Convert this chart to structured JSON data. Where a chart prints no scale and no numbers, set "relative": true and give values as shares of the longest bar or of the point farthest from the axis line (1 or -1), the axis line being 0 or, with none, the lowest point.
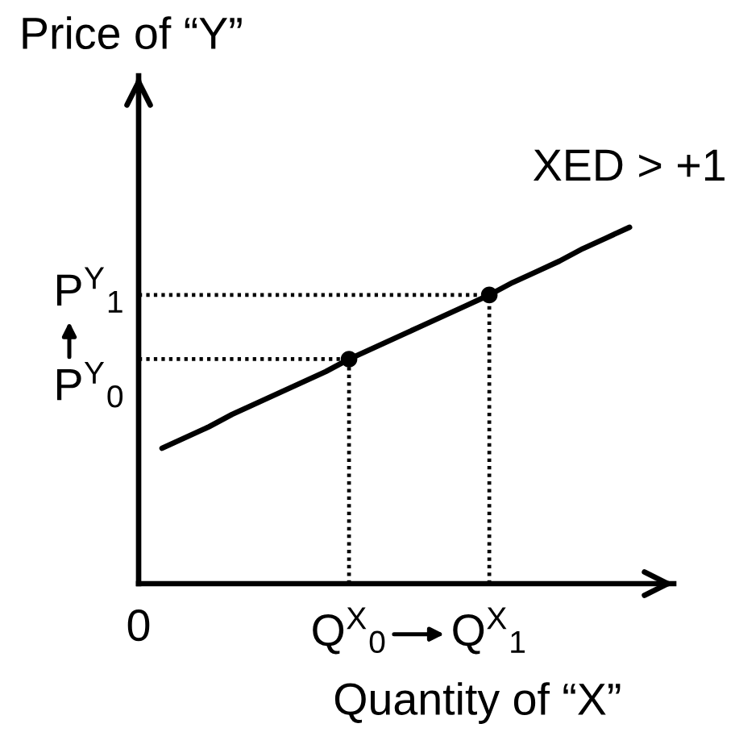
{
  "chart_data": {
    "type": "line",
    "relative": true,
    "xlabel": "Quantity of “X”",
    "ylabel": "Price of “Y”",
    "categories": [
      "0",
      null,
      null,
      null,
      null,
      null,
      null,
      null,
      null,
      "Q$^{X}$$_{0}$",
      null,
      null,
      null,
      null,
      null,
      "Q$^{X}$$_{1}$",
      null,
      null,
      null,
      null,
      null,
      null
    ],
    "series": [
      {
        "name": "XED > +1",
        "color": "#000000",
        "line_style": "solid",
        "values": [
          null,
          0.38,
          0.41,
          0.44,
          0.475,
          0.505,
          0.535,
          0.565,
          0.595,
          0.63,
          0.66,
          0.69,
          0.72,
          0.75,
          0.78,
          0.81,
          0.845,
          0.875,
          0.905,
          0.94,
          0.97,
          1
        ]
      },
      {
        "type": "lollipop",
        "color": "#000000",
        "marker": "circle",
        "line_style": "dotted",
        "values": [
          null,
          null,
          null,
          null,
          null,
          null,
          null,
          null,
          null,
          0.63,
          null,
          null,
          null,
          null,
          null,
          0.81,
          null,
          null,
          null,
          null,
          null,
          null
        ]
      },
      {
        "type": "line",
        "color": "#000000",
        "line_style": "dotted",
        "values": [
          0.63,
          0.63,
          0.63,
          0.63,
          0.63,
          0.63,
          0.63,
          0.63,
          0.63,
          0.63,
          null,
          null,
          null,
          null,
          null,
          null,
          null,
          null,
          null,
          null,
          null,
          null
        ]
      },
      {
        "type": "line",
        "color": "#000000",
        "line_style": "dotted",
        "values": [
          0.81,
          0.81,
          0.81,
          0.81,
          0.81,
          0.81,
          0.81,
          0.81,
          0.81,
          0.81,
          0.81,
          0.81,
          0.81,
          0.81,
          0.81,
          0.81,
          null,
          null,
          null,
          null,
          null,
          null
        ]
      }
    ],
    "annotations": [
      {
        "text": "P$^{Y}$$_{0}$",
        "x": "0",
        "y": 0.63
      },
      {
        "text": "P$^{Y}$$_{1}$",
        "x": "0",
        "y": 0.81
      }
    ]
  }
}
